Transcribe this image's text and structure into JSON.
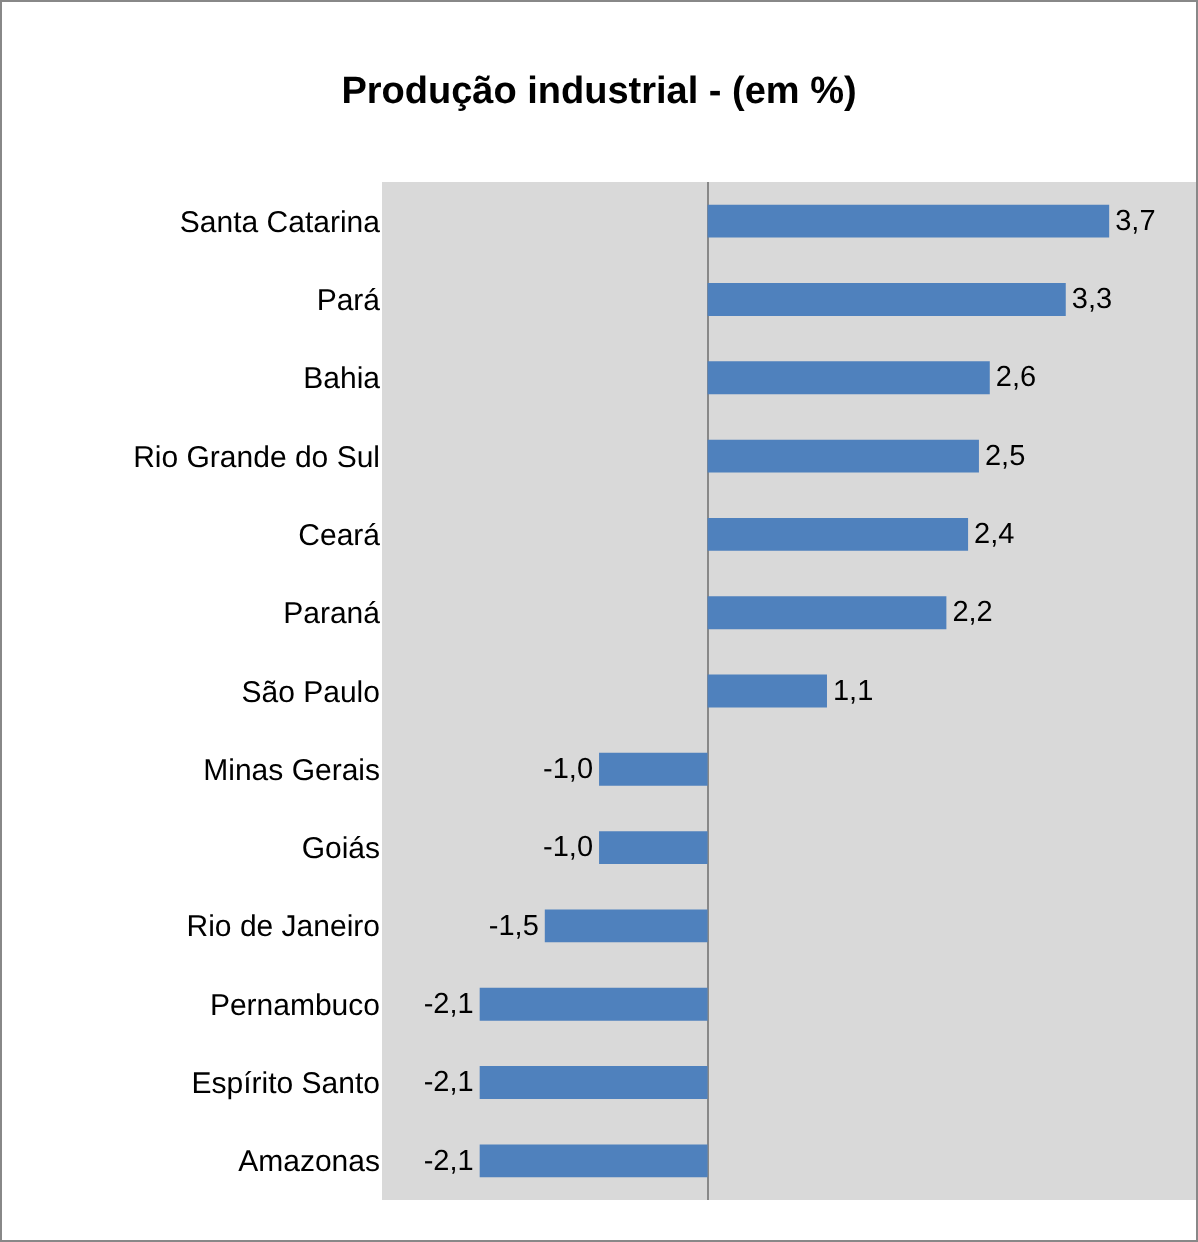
{
  "chart_data": {
    "type": "bar",
    "orientation": "horizontal",
    "title": "Produção industrial - (em %)",
    "categories": [
      "Santa Catarina",
      "Pará",
      "Bahia",
      "Rio Grande do Sul",
      "Ceará",
      "Paraná",
      "São Paulo",
      "Minas Gerais",
      "Goiás",
      "Rio de Janeiro",
      "Pernambuco",
      "Espírito Santo",
      "Amazonas"
    ],
    "values": [
      3.7,
      3.3,
      2.6,
      2.5,
      2.4,
      2.2,
      1.1,
      -1.0,
      -1.0,
      -1.5,
      -2.1,
      -2.1,
      -2.1
    ],
    "value_labels": [
      "3,7",
      "3,3",
      "2,6",
      "2,5",
      "2,4",
      "2,2",
      "1,1",
      "-1,0",
      "-1,0",
      "-1,5",
      "-2,1",
      "-2,1",
      "-2,1"
    ],
    "color": "#4f81bd",
    "xlim": [
      -3,
      4.5
    ],
    "tick_labels": "y",
    "grid": false
  }
}
